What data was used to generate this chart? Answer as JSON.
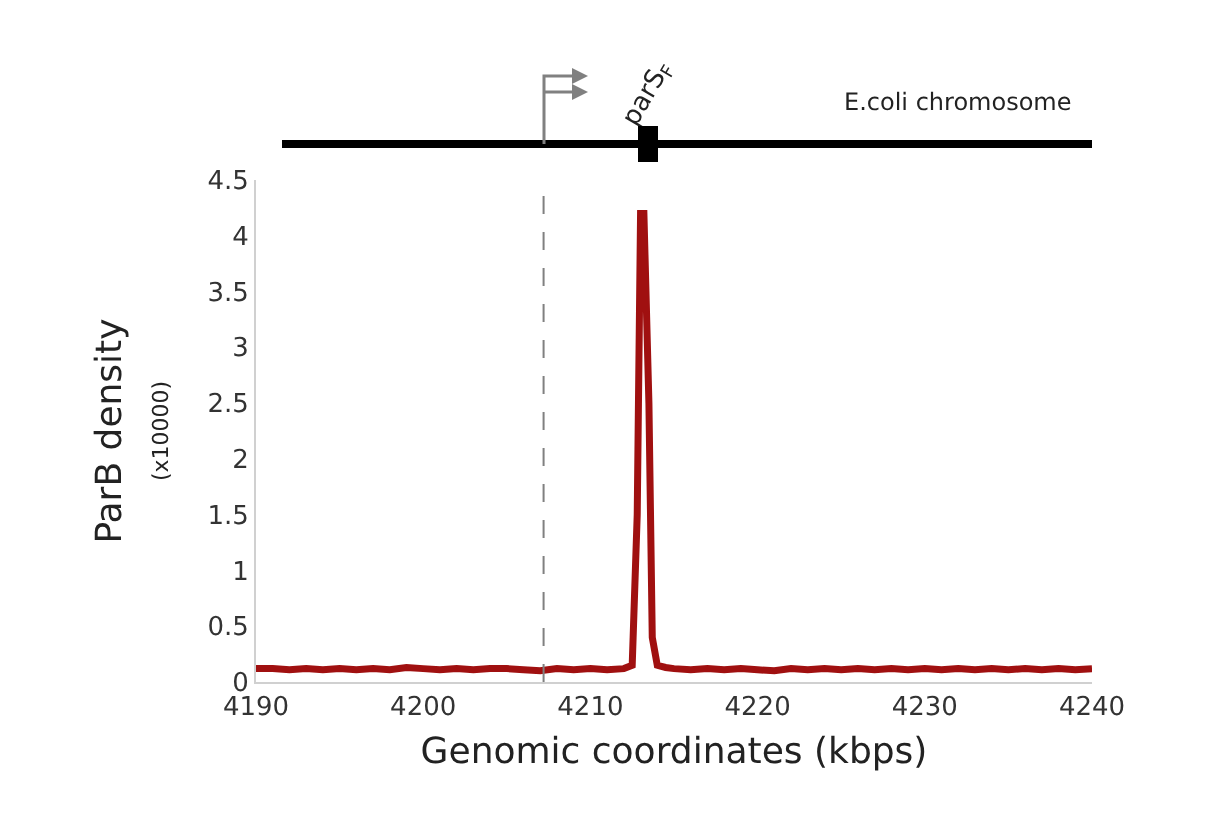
{
  "chart_data": {
    "type": "line",
    "xlabel": "Genomic coordinates (kbps)",
    "ylabel": "ParB density\n(x10000)",
    "annotations": [
      "parS$_{F}$",
      "E.coli chromosome"
    ],
    "x": [
      4190,
      4191,
      4192,
      4193,
      4194,
      4195,
      4196,
      4197,
      4198,
      4199,
      4200,
      4201,
      4202,
      4203,
      4204,
      4205,
      4206,
      4207,
      4208,
      4209,
      4210,
      4211,
      4212,
      4212.5,
      4212.8,
      4213.0,
      4213.2,
      4213.5,
      4213.7,
      4214,
      4214.5,
      4215,
      4216,
      4217,
      4218,
      4219,
      4220,
      4221,
      4222,
      4223,
      4224,
      4225,
      4226,
      4227,
      4228,
      4229,
      4230,
      4231,
      4232,
      4233,
      4234,
      4235,
      4236,
      4237,
      4238,
      4239,
      4240
    ],
    "series": [
      {
        "color": "#a01010",
        "values": [
          0.12,
          0.12,
          0.11,
          0.12,
          0.11,
          0.12,
          0.11,
          0.12,
          0.11,
          0.13,
          0.12,
          0.11,
          0.12,
          0.11,
          0.12,
          0.12,
          0.11,
          0.1,
          0.12,
          0.11,
          0.12,
          0.11,
          0.12,
          0.15,
          1.5,
          4.2,
          4.2,
          2.5,
          0.4,
          0.15,
          0.13,
          0.12,
          0.11,
          0.12,
          0.11,
          0.12,
          0.11,
          0.1,
          0.12,
          0.11,
          0.12,
          0.11,
          0.12,
          0.11,
          0.12,
          0.11,
          0.12,
          0.11,
          0.12,
          0.11,
          0.12,
          0.11,
          0.12,
          0.11,
          0.12,
          0.11,
          0.12
        ]
      }
    ],
    "xlim": [
      4190,
      4240
    ],
    "xticks": [
      4190,
      4200,
      4210,
      4220,
      4230,
      4240
    ],
    "ylim": [
      0,
      4.5
    ],
    "yticks": [
      0,
      0.5,
      1,
      1.5,
      2,
      2.5,
      3,
      3.5,
      4,
      4.5
    ],
    "ref_lines": [
      {
        "axis": "x",
        "value": 4207.2,
        "color": "#808080",
        "line_style": "dashed"
      }
    ],
    "line_style": "solid"
  }
}
